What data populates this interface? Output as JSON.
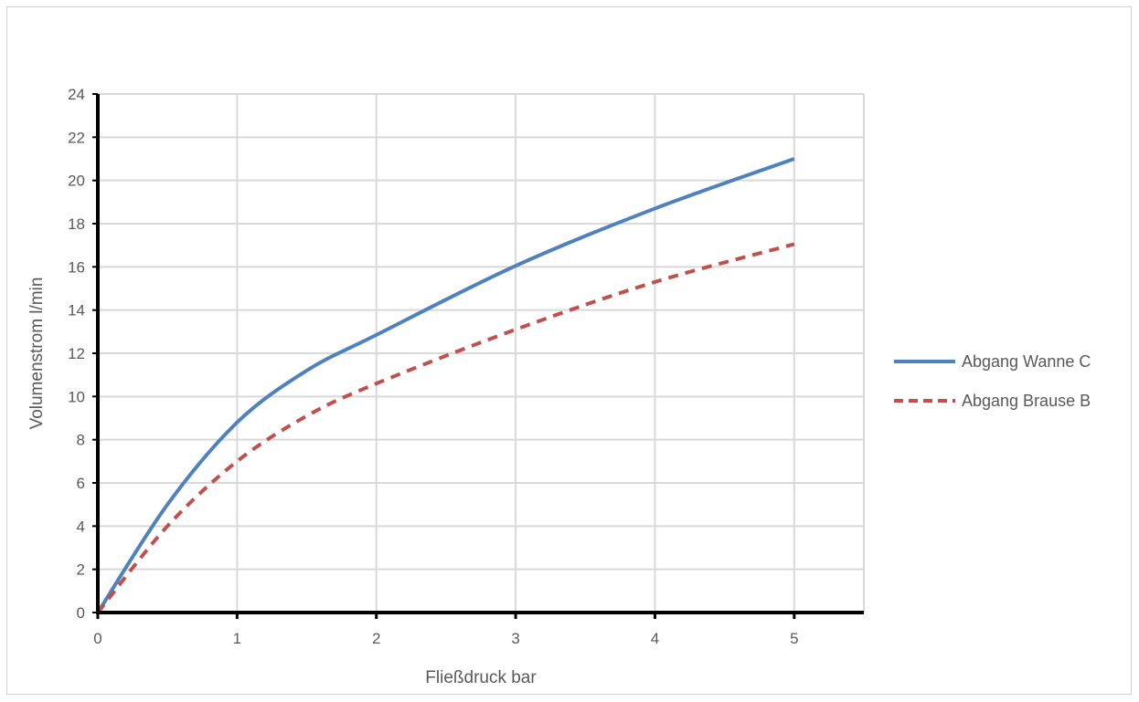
{
  "chart_data": {
    "type": "line",
    "title": "",
    "xlabel": "Fließdruck bar",
    "ylabel": "Volumenstrom l/min",
    "xlim": [
      0,
      5.5
    ],
    "ylim": [
      0,
      24
    ],
    "xticks": [
      0,
      1,
      2,
      3,
      4,
      5
    ],
    "yticks": [
      0,
      2,
      4,
      6,
      8,
      10,
      12,
      14,
      16,
      18,
      20,
      22,
      24
    ],
    "grid": true,
    "legend_position": "right",
    "series": [
      {
        "name": "Abgang Wanne C",
        "color": "#4f81bd",
        "style": "solid",
        "x": [
          0,
          0.5,
          1,
          1.5,
          2,
          3,
          4,
          5
        ],
        "y": [
          0,
          5.0,
          8.8,
          11.2,
          12.85,
          16.05,
          18.7,
          21.0
        ]
      },
      {
        "name": "Abgang Brause B",
        "color": "#c0504d",
        "style": "dashed",
        "x": [
          0,
          0.5,
          1,
          1.5,
          2,
          3,
          4,
          5
        ],
        "y": [
          0,
          4.0,
          7.0,
          9.1,
          10.6,
          13.1,
          15.3,
          17.05
        ]
      }
    ]
  }
}
